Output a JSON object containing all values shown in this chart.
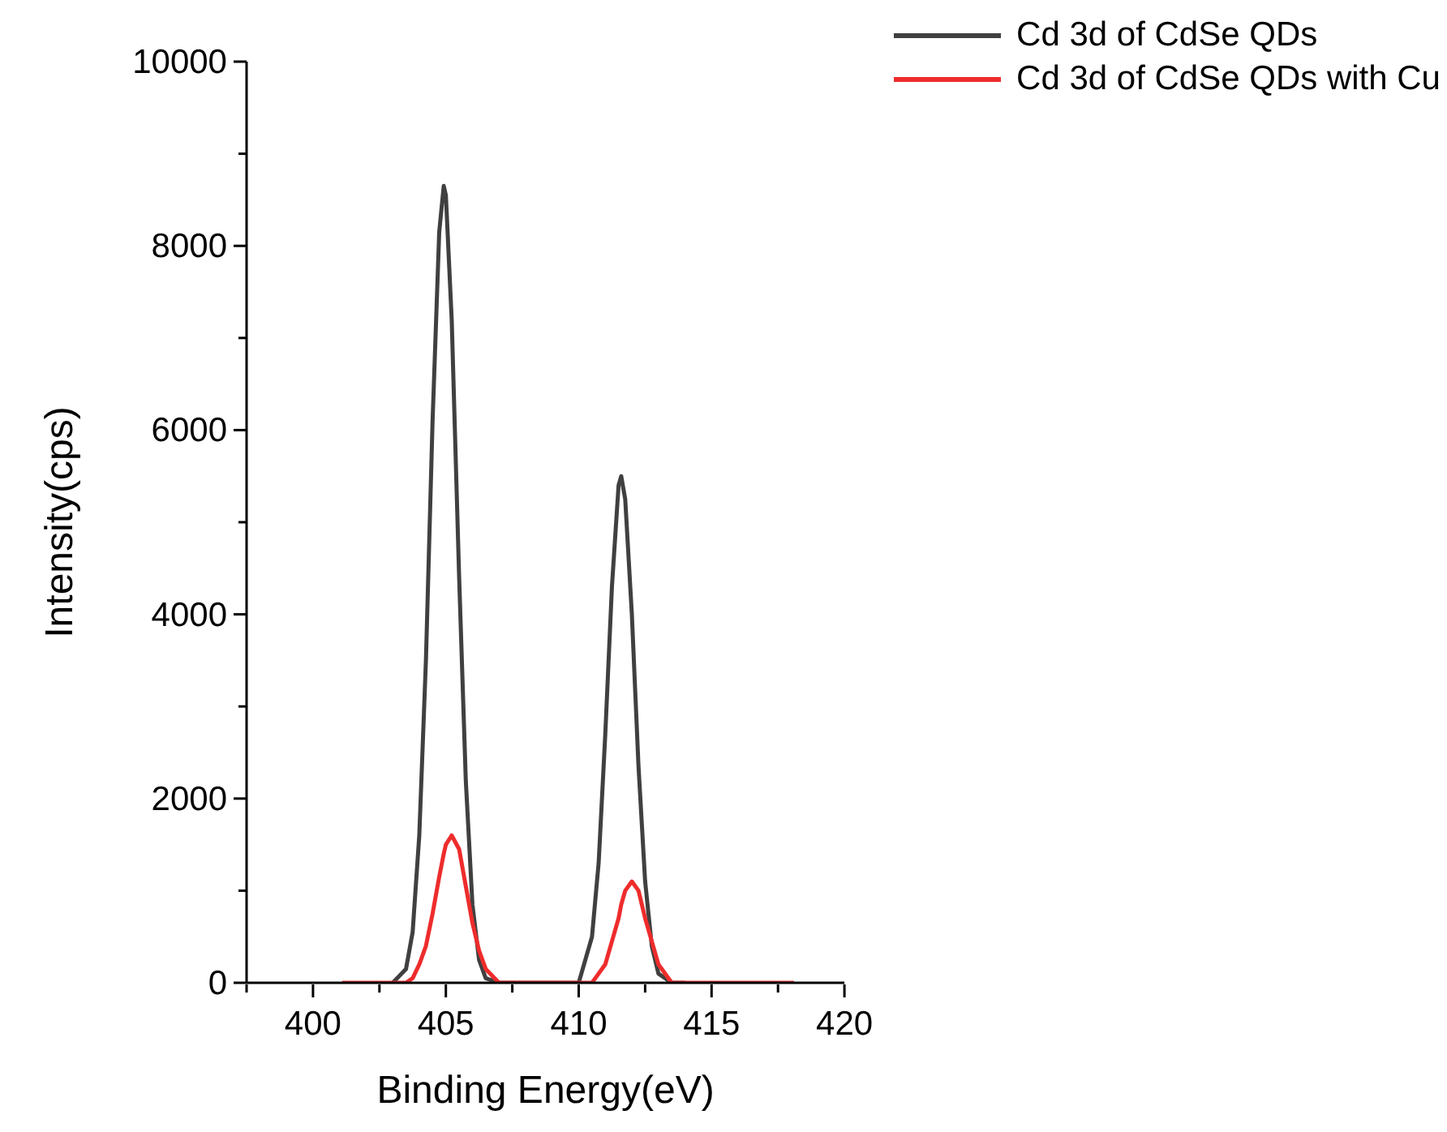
{
  "chart_data": {
    "type": "line",
    "xlabel": "Binding Energy(eV)",
    "ylabel": "Intensity(cps)",
    "x": [
      401.1,
      402,
      403,
      403.5,
      403.75,
      404,
      404.25,
      404.5,
      404.75,
      404.92,
      405,
      405.22,
      405.5,
      405.75,
      406,
      406.25,
      406.5,
      407,
      407.5,
      408,
      409,
      409.5,
      410,
      410.5,
      410.75,
      411,
      411.25,
      411.5,
      411.6,
      411.75,
      412,
      412.25,
      412.5,
      412.75,
      413,
      413.5,
      414,
      415,
      418.1
    ],
    "series": [
      {
        "name": "Cd 3d of CdSe QDs",
        "color": "#404040",
        "values": [
          null,
          null,
          0,
          150,
          550,
          1600,
          3500,
          6100,
          8150,
          8650,
          8550,
          7200,
          4400,
          2200,
          850,
          250,
          50,
          0,
          0,
          0,
          0,
          0,
          0,
          500,
          1300,
          2700,
          4300,
          5400,
          5500,
          5250,
          4000,
          2350,
          1100,
          400,
          100,
          0,
          0,
          null,
          null
        ]
      },
      {
        "name": "Cd 3d of CdSe QDs with Cu",
        "color": "#ee2c2c",
        "values": [
          0,
          0,
          0,
          0,
          50,
          200,
          400,
          750,
          1150,
          1400,
          1500,
          1600,
          1450,
          1050,
          650,
          350,
          150,
          0,
          0,
          0,
          0,
          0,
          0,
          0,
          100,
          200,
          450,
          700,
          850,
          1000,
          1100,
          1000,
          700,
          450,
          200,
          0,
          0,
          0,
          0
        ]
      }
    ],
    "xlim": [
      397.5,
      420
    ],
    "xticks": [
      {
        "value": 397.5,
        "label": null
      },
      400,
      {
        "value": 402.5,
        "label": null
      },
      405,
      {
        "value": 407.5,
        "label": null
      },
      410,
      {
        "value": 412.5,
        "label": null
      },
      415,
      {
        "value": 417.5,
        "label": null
      },
      420
    ],
    "ylim": [
      0,
      10000
    ],
    "yticks": [
      0,
      {
        "value": 1000,
        "label": null
      },
      2000,
      {
        "value": 3000,
        "label": null
      },
      4000,
      {
        "value": 5000,
        "label": null
      },
      6000,
      {
        "value": 7000,
        "label": null
      },
      8000,
      {
        "value": 9000,
        "label": null
      },
      10000
    ],
    "legend": "top right",
    "marker": "none",
    "line_style": "solid"
  }
}
